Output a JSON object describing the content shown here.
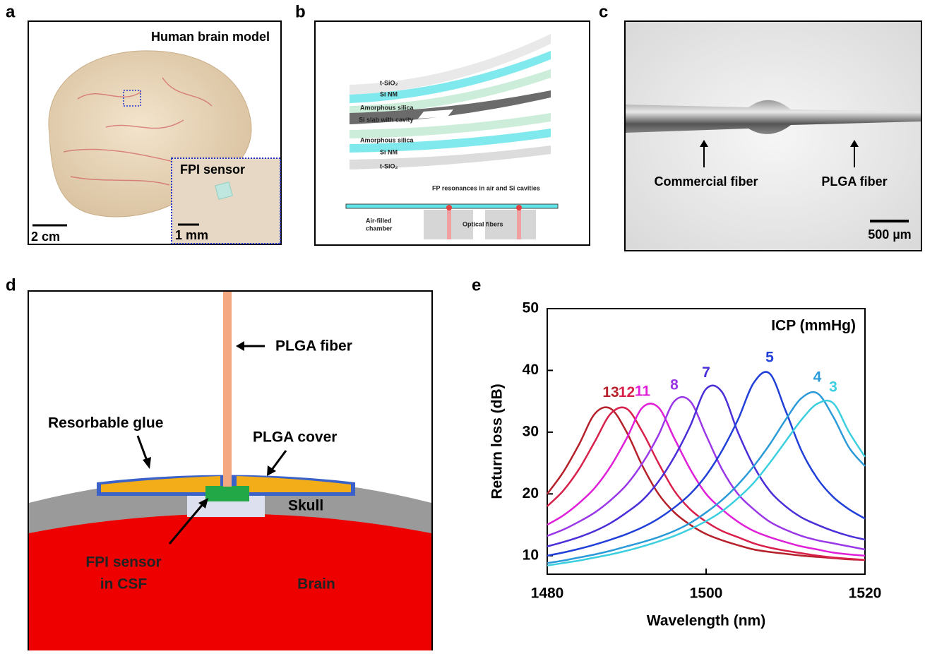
{
  "panel_labels": [
    "a",
    "b",
    "c",
    "d",
    "e"
  ],
  "panel_a": {
    "title": "Human brain model",
    "inset_label": "FPI sensor",
    "scale_bar": "2 cm",
    "inset_scale_bar": "1 mm"
  },
  "panel_b": {
    "layers": [
      "t-SiO₂",
      "Si NM",
      "Amorphous silica",
      "Si slab with cavity",
      "Amorphous silica",
      "Si NM",
      "t-SiO₂"
    ],
    "resonance_label": "FP resonances in air and Si cavities",
    "chamber_label": [
      "Air-filled",
      "chamber"
    ],
    "fiber_label": "Optical fibers"
  },
  "panel_c": {
    "left_label": "Commercial fiber",
    "right_label": "PLGA fiber",
    "scale_bar": "500 µm"
  },
  "panel_d": {
    "fiber": "PLGA fiber",
    "glue": "Resorbable glue",
    "cover": "PLGA cover",
    "skull": "Skull",
    "sensor": [
      "FPI sensor",
      "in CSF"
    ],
    "brain": "Brain"
  },
  "chart_data": {
    "type": "line",
    "title": "ICP (mmHg)",
    "x_label": "Wavelength (nm)",
    "y_label": "Return loss (dB)",
    "xlim": [
      1480,
      1520
    ],
    "xticks": [
      1480,
      1500,
      1520
    ],
    "ylim": [
      7,
      50
    ],
    "yticks": [
      10,
      20,
      30,
      40,
      50
    ],
    "x": [
      1480,
      1482,
      1484,
      1486,
      1488,
      1490,
      1492,
      1494,
      1496,
      1498,
      1500,
      1502,
      1504,
      1506,
      1508,
      1510,
      1512,
      1514,
      1516,
      1518,
      1520
    ],
    "series": [
      {
        "name": "13",
        "color": "#b5202a",
        "values": [
          20,
          23.5,
          28,
          33,
          33.8,
          30,
          24.5,
          20,
          17,
          15,
          13.5,
          12.5,
          11.7,
          11,
          10.6,
          10.3,
          10,
          9.8,
          9.6,
          9.4,
          9.3
        ]
      },
      {
        "name": "12",
        "color": "#d8204a",
        "values": [
          18,
          20.5,
          24,
          28.5,
          33,
          33.8,
          30,
          25,
          20.5,
          17.5,
          15.5,
          14,
          13,
          12,
          11.3,
          10.8,
          10.4,
          10,
          9.7,
          9.5,
          9.3
        ]
      },
      {
        "name": "11",
        "color": "#e020d8",
        "values": [
          15,
          16.5,
          18.5,
          21,
          24.5,
          29,
          34,
          34,
          29,
          24,
          20,
          17.5,
          15.5,
          14,
          13,
          12.2,
          11.5,
          11,
          10.5,
          10.2,
          10
        ]
      },
      {
        "name": "8",
        "color": "#9a38e8",
        "values": [
          13.2,
          14.2,
          15.5,
          17,
          19,
          21.5,
          25,
          29.5,
          35,
          35,
          29.5,
          24,
          20,
          17.5,
          15.5,
          14.2,
          13.2,
          12.5,
          12,
          11.5,
          11
        ]
      },
      {
        "name": "7",
        "color": "#4a2ed8",
        "values": [
          11.5,
          12.2,
          13,
          14,
          15.3,
          17,
          19,
          22,
          26,
          31,
          37,
          36.5,
          30,
          24.5,
          20.5,
          18,
          16.2,
          15,
          14,
          13.2,
          12.6
        ]
      },
      {
        "name": "5",
        "color": "#2040d8",
        "values": [
          10,
          10.5,
          11.1,
          11.8,
          12.6,
          13.5,
          14.6,
          16,
          17.8,
          20,
          23,
          27,
          32,
          38,
          39.5,
          33.5,
          27,
          22.5,
          19.5,
          17.5,
          16
        ]
      },
      {
        "name": "4",
        "color": "#2a9ad8",
        "values": [
          8.8,
          9.2,
          9.7,
          10.2,
          10.8,
          11.5,
          12.2,
          13,
          14,
          15.3,
          17,
          19,
          21.5,
          24.5,
          28,
          32,
          35.5,
          36.3,
          32.5,
          27.5,
          24.5
        ]
      },
      {
        "name": "3",
        "color": "#3ccfe0",
        "values": [
          8.4,
          8.8,
          9.2,
          9.7,
          10.2,
          10.8,
          11.5,
          12.3,
          13.2,
          14.3,
          15.6,
          17.2,
          19.3,
          21.8,
          25,
          28.5,
          32,
          34.6,
          34.7,
          30,
          26
        ]
      }
    ]
  }
}
